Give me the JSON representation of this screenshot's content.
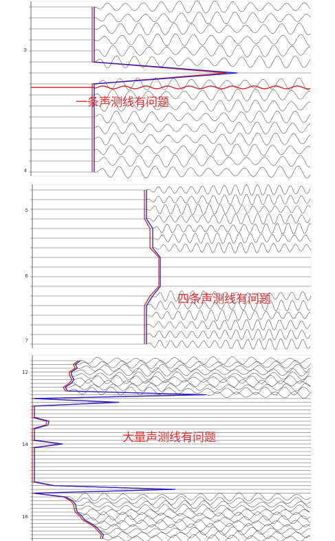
{
  "panels": [
    {
      "annotation": "一条声测线有问题",
      "ticks": [
        "3",
        "4"
      ]
    },
    {
      "annotation": "四条声测线有问题",
      "ticks": [
        "5",
        "6",
        "7"
      ]
    },
    {
      "annotation": "大量声测线有问题",
      "ticks": [
        "12",
        "14",
        "16"
      ]
    }
  ]
}
